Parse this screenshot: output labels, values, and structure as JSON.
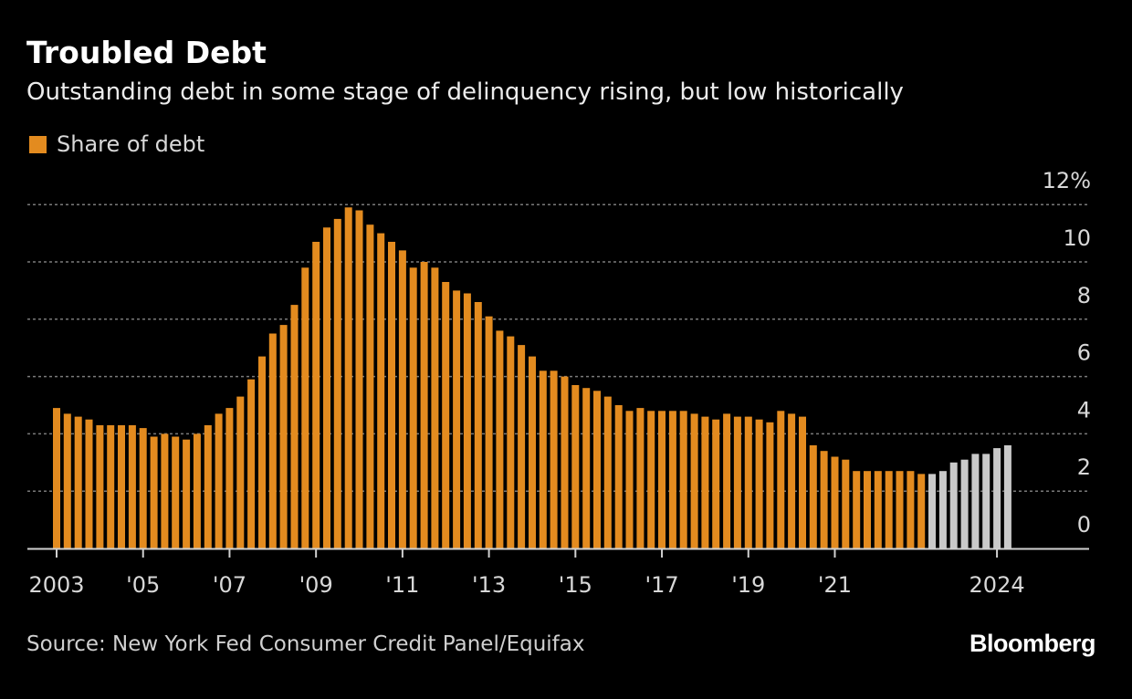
{
  "chart_data": {
    "type": "bar",
    "title": "Troubled Debt",
    "subtitle": "Outstanding debt in some stage of delinquency rising, but low historically",
    "legend": [
      {
        "label": "Share of debt",
        "color": "#e38b1f"
      }
    ],
    "highlight_color": "#c9c9c9",
    "xlabel": "",
    "ylabel": "",
    "ylim": [
      0,
      12
    ],
    "yticks": [
      "12%",
      "10",
      "8",
      "6",
      "4",
      "2",
      "0"
    ],
    "ytick_values": [
      12,
      10,
      8,
      6,
      4,
      2,
      0
    ],
    "xticks": [
      {
        "label": "2003",
        "index": 0
      },
      {
        "label": "'05",
        "index": 8
      },
      {
        "label": "'07",
        "index": 16
      },
      {
        "label": "'09",
        "index": 24
      },
      {
        "label": "'11",
        "index": 32
      },
      {
        "label": "'13",
        "index": 40
      },
      {
        "label": "'15",
        "index": 48
      },
      {
        "label": "'17",
        "index": 56
      },
      {
        "label": "'19",
        "index": 64
      },
      {
        "label": "'21",
        "index": 72
      },
      {
        "label": "2024",
        "index": 87
      }
    ],
    "values": [
      4.9,
      4.7,
      4.6,
      4.5,
      4.3,
      4.3,
      4.3,
      4.3,
      4.2,
      3.9,
      4.0,
      3.9,
      3.8,
      4.0,
      4.3,
      4.7,
      4.9,
      5.3,
      5.9,
      6.7,
      7.5,
      7.8,
      8.5,
      9.8,
      10.7,
      11.2,
      11.5,
      11.9,
      11.8,
      11.3,
      11.0,
      10.7,
      10.4,
      9.8,
      10.0,
      9.8,
      9.3,
      9.0,
      8.9,
      8.6,
      8.1,
      7.6,
      7.4,
      7.1,
      6.7,
      6.2,
      6.2,
      6.0,
      5.7,
      5.6,
      5.5,
      5.3,
      5.0,
      4.8,
      4.9,
      4.8,
      4.8,
      4.8,
      4.8,
      4.7,
      4.6,
      4.5,
      4.7,
      4.6,
      4.6,
      4.5,
      4.4,
      4.8,
      4.7,
      4.6,
      3.6,
      3.4,
      3.2,
      3.1,
      2.7,
      2.7,
      2.7,
      2.7,
      2.7,
      2.7,
      2.6,
      2.6,
      2.7,
      3.0,
      3.1,
      3.3,
      3.3,
      3.5,
      3.6
    ],
    "highlight_from_index": 81
  },
  "footer": {
    "source": "Source: New York Fed Consumer Credit Panel/Equifax",
    "brand": "Bloomberg"
  }
}
